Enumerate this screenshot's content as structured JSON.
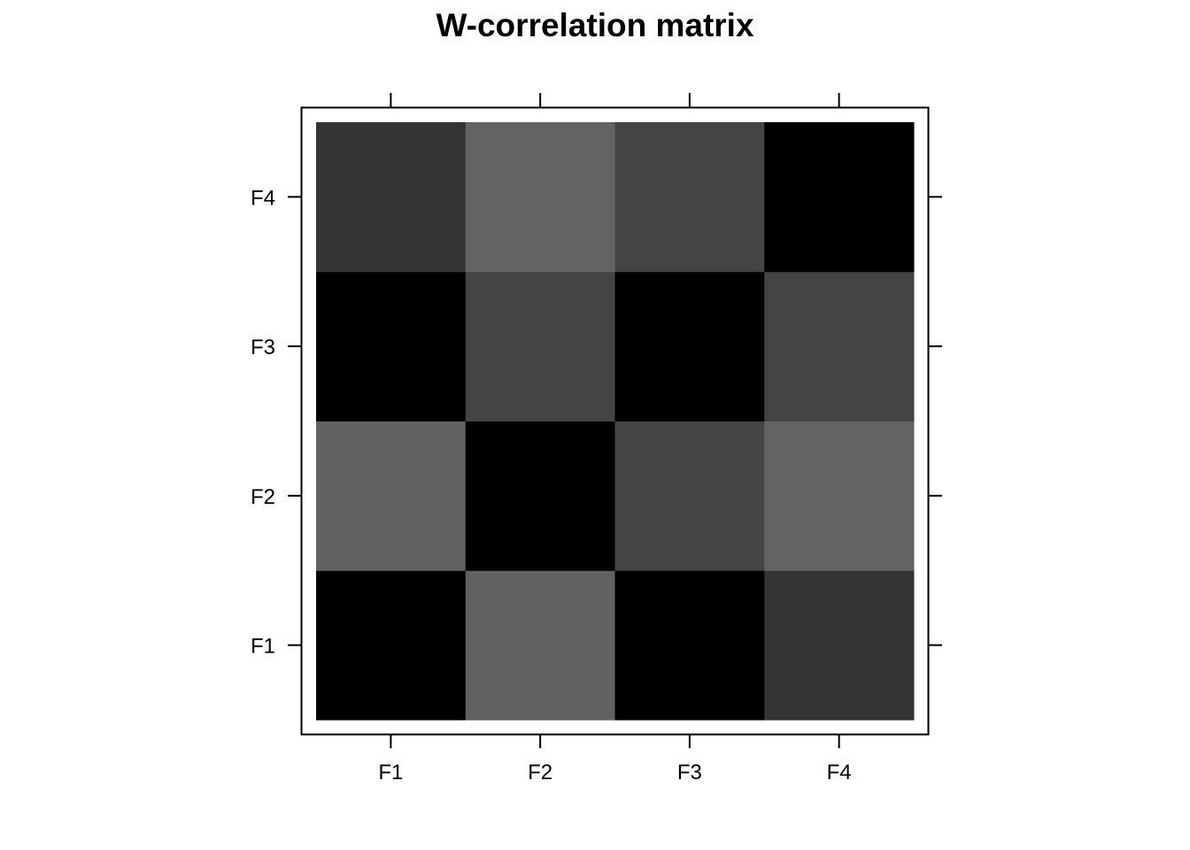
{
  "chart_data": {
    "type": "heatmap",
    "title": "W-correlation matrix",
    "xlabel": "",
    "ylabel": "",
    "x_categories": [
      "F1",
      "F2",
      "F3",
      "F4"
    ],
    "y_categories": [
      "F1",
      "F2",
      "F3",
      "F4"
    ],
    "values": [
      [
        1.0,
        0.74,
        1.0,
        0.89
      ],
      [
        0.74,
        1.0,
        0.84,
        0.73
      ],
      [
        1.0,
        0.84,
        1.0,
        0.84
      ],
      [
        0.89,
        0.73,
        0.84,
        1.0
      ]
    ],
    "value_range": [
      0,
      1
    ],
    "color_scale": "grey, 1 = black, 0 = white",
    "grid": false,
    "legend": "none"
  }
}
